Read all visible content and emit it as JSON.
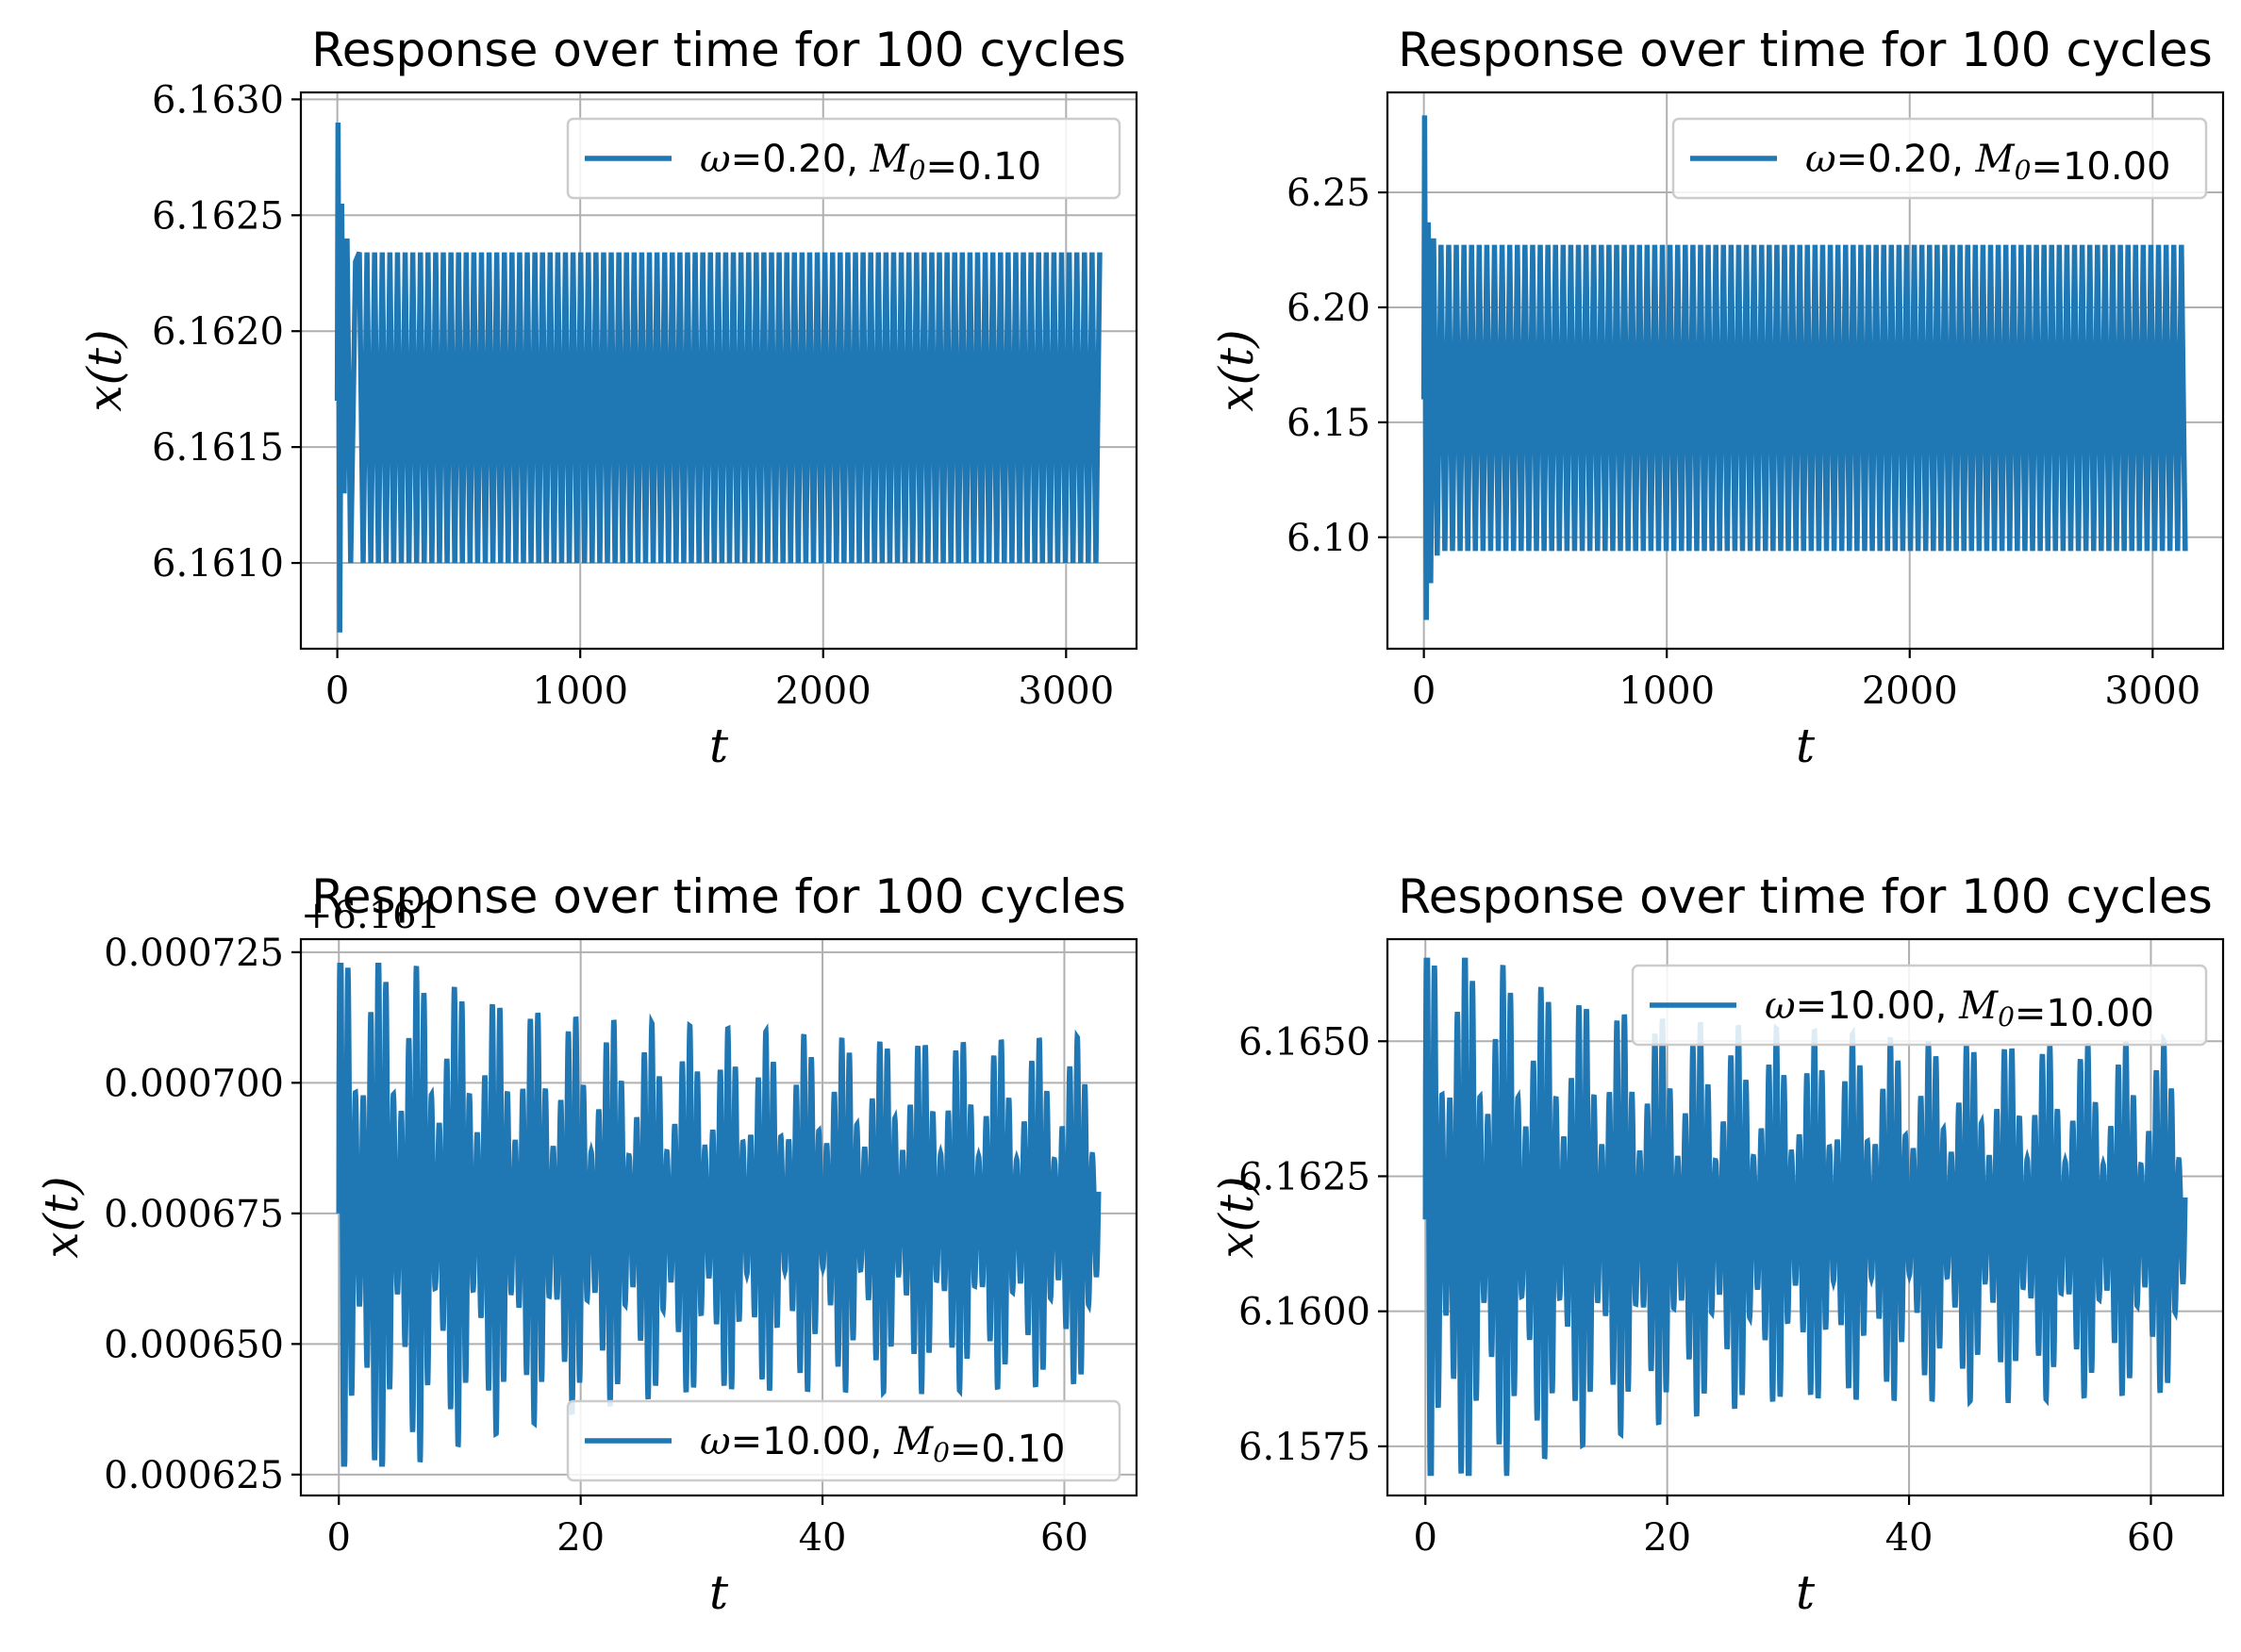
{
  "chart_data": [
    {
      "type": "line",
      "title": "Response over time for 100 cycles",
      "xlabel": "t",
      "ylabel": "x(t)",
      "xlim": [
        -150,
        3290
      ],
      "ylim": [
        6.16063,
        6.16303
      ],
      "xticks": [
        0,
        1000,
        2000,
        3000
      ],
      "xtick_labels": [
        "0",
        "1000",
        "2000",
        "3000"
      ],
      "yticks": [
        6.161,
        6.1615,
        6.162,
        6.1625,
        6.163
      ],
      "ytick_labels": [
        "6.1610",
        "6.1615",
        "6.1620",
        "6.1625",
        "6.1630"
      ],
      "offset_text": "",
      "grid": true,
      "legend_position": "top-right",
      "series": [
        {
          "name": "ω=0.20, M₀=0.10",
          "legend": {
            "omega": "0.20",
            "m0": "0.10"
          },
          "color": "#1f77b4",
          "signal": {
            "t_start": 0,
            "t_end": 3142,
            "n_cycles": 100,
            "center": 6.16167,
            "steady_amplitude": 0.00067,
            "initial_start": 6.1617,
            "transient_peaks": [
              [
                3,
                6.1629
              ],
              [
                10,
                6.1607
              ],
              [
                18,
                6.16255
              ],
              [
                28,
                6.1613
              ],
              [
                40,
                6.1624
              ],
              [
                55,
                6.161
              ],
              [
                75,
                6.1623
              ]
            ]
          }
        }
      ]
    },
    {
      "type": "line",
      "title": "Response over time for 100 cycles",
      "xlabel": "t",
      "ylabel": "x(t)",
      "xlim": [
        -150,
        3290
      ],
      "ylim": [
        6.0515,
        6.2935
      ],
      "xticks": [
        0,
        1000,
        2000,
        3000
      ],
      "xtick_labels": [
        "0",
        "1000",
        "2000",
        "3000"
      ],
      "yticks": [
        6.1,
        6.15,
        6.2,
        6.25
      ],
      "ytick_labels": [
        "6.10",
        "6.15",
        "6.20",
        "6.25"
      ],
      "offset_text": "",
      "grid": true,
      "legend_position": "top-right",
      "series": [
        {
          "name": "ω=0.20, M₀=10.00",
          "legend": {
            "omega": "0.20",
            "m0": "10.00"
          },
          "color": "#1f77b4",
          "signal": {
            "t_start": 0,
            "t_end": 3142,
            "n_cycles": 100,
            "center": 6.1606,
            "steady_amplitude": 0.0666,
            "initial_start": 6.16,
            "transient_peaks": [
              [
                3,
                6.2835
              ],
              [
                10,
                6.064
              ],
              [
                18,
                6.237
              ],
              [
                28,
                6.08
              ],
              [
                40,
                6.23
              ],
              [
                55,
                6.092
              ]
            ]
          }
        }
      ]
    },
    {
      "type": "line",
      "title": "Response over time for 100 cycles",
      "xlabel": "t",
      "ylabel": "x(t)",
      "xlim": [
        -3.14,
        65.97
      ],
      "ylim": [
        0.000621,
        0.0007275
      ],
      "xticks": [
        0,
        20,
        40,
        60
      ],
      "xtick_labels": [
        "0",
        "20",
        "40",
        "60"
      ],
      "yticks": [
        0.000625,
        0.00065,
        0.000675,
        0.0007,
        0.000725
      ],
      "ytick_labels": [
        "0.000625",
        "0.000650",
        "0.000675",
        "0.000700",
        "0.000725"
      ],
      "offset_text": "+6.161",
      "grid": true,
      "legend_position": "lower-right",
      "series": [
        {
          "name": "ω=10.00, M₀=0.10",
          "legend": {
            "omega": "10.00",
            "m0": "0.10"
          },
          "color": "#1f77b4",
          "signal": {
            "t_start": 0,
            "t_end": 62.83,
            "n_cycles": 100,
            "center": 0.000675,
            "initial_start": 0.000675,
            "env_start": 4.8e-05,
            "env_end": 2.75e-05,
            "env_decay": 12,
            "beat_period": 3.2,
            "beat_depth": 0.55,
            "max_value": 0.0007225,
            "min_value": 0.000627
          }
        }
      ]
    },
    {
      "type": "line",
      "title": "Response over time for 100 cycles",
      "xlabel": "t",
      "ylabel": "x(t)",
      "xlim": [
        -3.14,
        65.97
      ],
      "ylim": [
        6.15659,
        6.16689
      ],
      "xticks": [
        0,
        20,
        40,
        60
      ],
      "xtick_labels": [
        "0",
        "20",
        "40",
        "60"
      ],
      "yticks": [
        6.1575,
        6.16,
        6.1625,
        6.165
      ],
      "ytick_labels": [
        "6.1575",
        "6.1600",
        "6.1625",
        "6.1650"
      ],
      "offset_text": "",
      "grid": true,
      "legend_position": "top-right",
      "series": [
        {
          "name": "ω=10.00, M₀=10.00",
          "legend": {
            "omega": "10.00",
            "m0": "10.00"
          },
          "color": "#1f77b4",
          "signal": {
            "t_start": 0,
            "t_end": 62.83,
            "n_cycles": 100,
            "center": 6.1617,
            "initial_start": 6.1617,
            "env_start": 0.0048,
            "env_end": 0.0027,
            "env_decay": 12,
            "beat_period": 3.2,
            "beat_depth": 0.55,
            "max_value": 6.1665,
            "min_value": 6.157
          }
        }
      ]
    }
  ]
}
